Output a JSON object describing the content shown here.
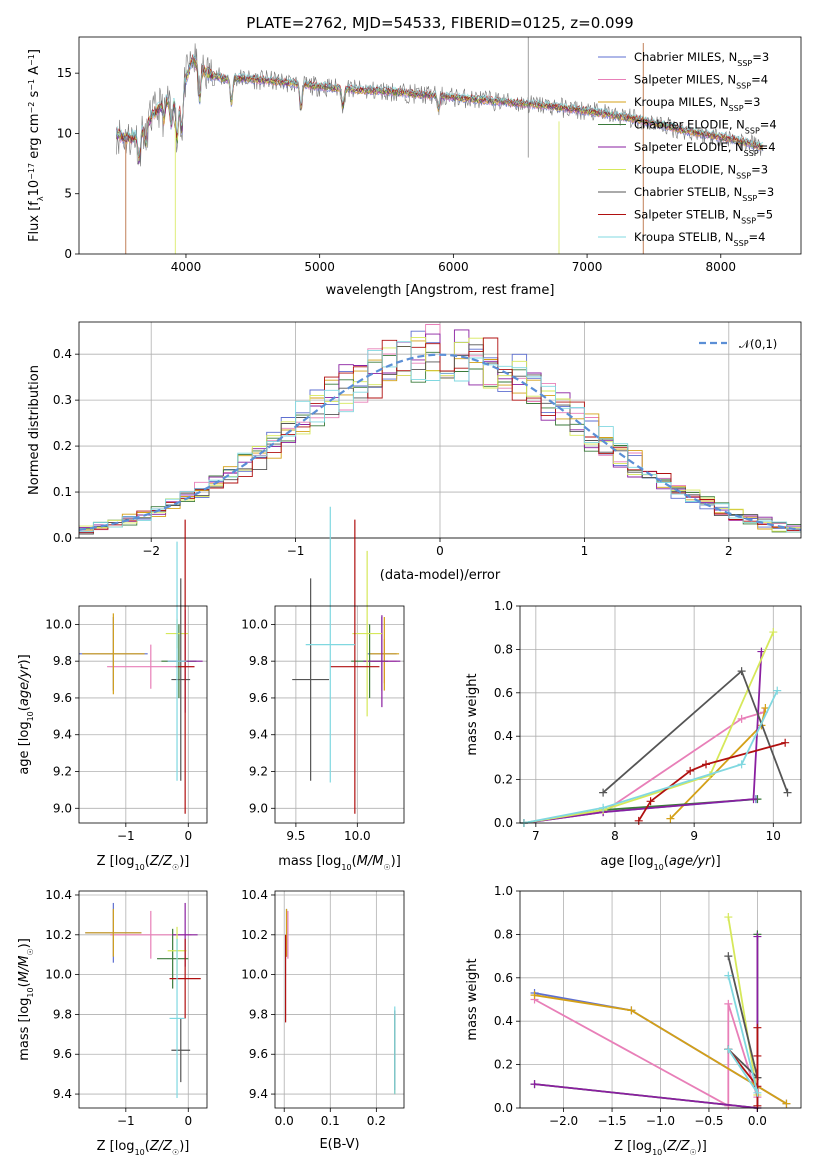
{
  "figure": {
    "title": "PLATE=2762, MJD=54533, FIBERID=0125, z=0.099"
  },
  "colors": {
    "Chabrier MILES": "#5e6fd0",
    "Salpeter MILES": "#e87fb8",
    "Kroupa MILES": "#d4a017",
    "Chabrier ELODIE": "#3a7a3a",
    "Salpeter ELODIE": "#8a1fa0",
    "Kroupa ELODIE": "#d6e85a",
    "Chabrier STELIB": "#555555",
    "Salpeter STELIB": "#b01010",
    "Kroupa STELIB": "#80d8e0",
    "gaussian": "#5b8fd6"
  },
  "chart_data": [
    {
      "type": "line",
      "id": "spectrum",
      "xlabel": "wavelength [Angstrom, rest frame]",
      "ylabel": "Flux [f_λ10^-17 erg cm^-2 s^-1 A^-1]",
      "xlim": [
        3200,
        8600
      ],
      "ylim": [
        0,
        18
      ],
      "xticks": [
        4000,
        5000,
        6000,
        7000,
        8000
      ],
      "yticks": [
        0,
        5,
        10,
        15
      ],
      "grid": false,
      "legend_position": "top-right",
      "legend": [
        {
          "name": "Chabrier MILES",
          "nssp": "3"
        },
        {
          "name": "Salpeter MILES",
          "nssp": "4"
        },
        {
          "name": "Kroupa MILES",
          "nssp": "3"
        },
        {
          "name": "Chabrier ELODIE",
          "nssp": "4"
        },
        {
          "name": "Salpeter ELODIE",
          "nssp": "4"
        },
        {
          "name": "Kroupa ELODIE",
          "nssp": "3"
        },
        {
          "name": "Chabrier STELIB",
          "nssp": "3"
        },
        {
          "name": "Salpeter STELIB",
          "nssp": "5"
        },
        {
          "name": "Kroupa STELIB",
          "nssp": "4"
        }
      ],
      "continuum": {
        "x": [
          3480,
          3550,
          3650,
          3750,
          3850,
          3950,
          4000,
          4050,
          4100,
          4200,
          4300,
          4400,
          4500,
          4700,
          4900,
          5100,
          5300,
          5500,
          5700,
          5900,
          6100,
          6300,
          6500,
          6700,
          6900,
          7100,
          7300,
          7500,
          7700,
          7900,
          8100,
          8300
        ],
        "y": [
          10.0,
          9.6,
          9.8,
          11.5,
          12.8,
          12.4,
          14.6,
          16.1,
          15.4,
          14.8,
          14.5,
          14.6,
          14.5,
          14.3,
          14.0,
          13.8,
          13.6,
          13.5,
          13.3,
          13.1,
          12.9,
          12.7,
          12.5,
          12.3,
          12.0,
          11.7,
          11.3,
          10.9,
          10.3,
          9.9,
          9.5,
          8.9
        ]
      }
    },
    {
      "type": "bar",
      "id": "residual-histogram",
      "xlabel": "(data-model)/error",
      "ylabel": "Normed distribution",
      "xlim": [
        -2.5,
        2.5
      ],
      "ylim": [
        0,
        0.47
      ],
      "xticks": [
        -2,
        -1,
        0,
        1,
        2
      ],
      "yticks": [
        0.0,
        0.1,
        0.2,
        0.3,
        0.4
      ],
      "grid": true,
      "legend_position": "top-right",
      "legend": [
        {
          "name": "𝒩(0,1)"
        }
      ],
      "bin_width": 0.1,
      "curve": "standard normal density"
    },
    {
      "type": "scatter",
      "id": "age-vs-Z",
      "xlabel": "Z [log10(Z/Z☉)]",
      "ylabel": "age  [log10(age/yr)]",
      "xlim": [
        -1.75,
        0.3
      ],
      "ylim": [
        8.92,
        10.1
      ],
      "xticks": [
        -1,
        0
      ],
      "yticks": [
        9.0,
        9.2,
        9.4,
        9.6,
        9.8,
        10.0
      ],
      "grid": true,
      "series": [
        {
          "name": "Chabrier MILES",
          "x": -1.2,
          "y": 9.84,
          "xerr": 0.55,
          "yerr": 0.2
        },
        {
          "name": "Salpeter MILES",
          "x": -0.6,
          "y": 9.77,
          "xerr": 0.7,
          "yerr": 0.12
        },
        {
          "name": "Kroupa MILES",
          "x": -1.2,
          "y": 9.84,
          "xerr": 0.5,
          "yerr": 0.22
        },
        {
          "name": "Chabrier ELODIE",
          "x": -0.15,
          "y": 9.8,
          "xerr": 0.28,
          "yerr": 0.2
        },
        {
          "name": "Salpeter ELODIE",
          "x": -0.05,
          "y": 9.8,
          "xerr": 0.28,
          "yerr": 0.28
        },
        {
          "name": "Kroupa ELODIE",
          "x": -0.18,
          "y": 9.95,
          "xerr": 0.18,
          "yerr": 0.08
        },
        {
          "name": "Chabrier STELIB",
          "x": -0.12,
          "y": 9.7,
          "xerr": 0.15,
          "yerr": 0.55
        },
        {
          "name": "Salpeter STELIB",
          "x": -0.05,
          "y": 9.77,
          "xerr": 0.15,
          "yerr": 0.8
        },
        {
          "name": "Kroupa STELIB",
          "x": -0.18,
          "y": 9.8,
          "xerr": 0.15,
          "yerr": 0.65
        }
      ]
    },
    {
      "type": "scatter",
      "id": "age-vs-mass",
      "xlabel": "mass [log10(M/M☉)]",
      "ylabel": "",
      "xlim": [
        9.33,
        10.38
      ],
      "ylim": [
        8.92,
        10.1
      ],
      "xticks": [
        9.5,
        10.0
      ],
      "yticks": [
        9.0,
        9.2,
        9.4,
        9.6,
        9.8,
        10.0
      ],
      "grid": true,
      "series": [
        {
          "name": "Chabrier MILES",
          "x": 10.2,
          "y": 9.84,
          "xerr": 0.12,
          "yerr": 0.2
        },
        {
          "name": "Salpeter MILES",
          "x": 10.22,
          "y": 9.8,
          "xerr": 0.1,
          "yerr": 0.12
        },
        {
          "name": "Kroupa MILES",
          "x": 10.22,
          "y": 9.84,
          "xerr": 0.12,
          "yerr": 0.2
        },
        {
          "name": "Chabrier ELODIE",
          "x": 10.1,
          "y": 9.8,
          "xerr": 0.15,
          "yerr": 0.2
        },
        {
          "name": "Salpeter ELODIE",
          "x": 10.2,
          "y": 9.8,
          "xerr": 0.15,
          "yerr": 0.25
        },
        {
          "name": "Kroupa ELODIE",
          "x": 10.08,
          "y": 9.95,
          "xerr": 0.12,
          "yerr": 0.45
        },
        {
          "name": "Chabrier STELIB",
          "x": 9.62,
          "y": 9.7,
          "xerr": 0.15,
          "yerr": 0.55
        },
        {
          "name": "Salpeter STELIB",
          "x": 9.98,
          "y": 9.77,
          "xerr": 0.2,
          "yerr": 0.8
        },
        {
          "name": "Kroupa STELIB",
          "x": 9.78,
          "y": 9.89,
          "xerr": 0.2,
          "yerr": 0.75
        }
      ]
    },
    {
      "type": "line",
      "id": "mass-weight-vs-age",
      "xlabel": "age  [log10(age/yr)]",
      "ylabel": "mass weight",
      "xlim": [
        6.8,
        10.35
      ],
      "ylim": [
        0,
        1.0
      ],
      "xticks": [
        7,
        8,
        9,
        10
      ],
      "yticks": [
        0.0,
        0.2,
        0.4,
        0.6,
        0.8,
        1.0
      ],
      "grid": true,
      "series": [
        {
          "name": "Chabrier MILES",
          "x": [
            6.85,
            7.85,
            9.78
          ],
          "y": [
            0.0,
            0.05,
            0.11
          ]
        },
        {
          "name": "Salpeter MILES",
          "x": [
            6.85,
            7.85,
            9.6,
            9.88
          ],
          "y": [
            0.0,
            0.05,
            0.48,
            0.51
          ]
        },
        {
          "name": "Kroupa MILES",
          "x": [
            8.7,
            9.85,
            9.9
          ],
          "y": [
            0.02,
            0.45,
            0.53
          ]
        },
        {
          "name": "Chabrier ELODIE",
          "x": [
            6.85,
            7.85,
            9.8
          ],
          "y": [
            0.0,
            0.06,
            0.11
          ]
        },
        {
          "name": "Salpeter ELODIE",
          "x": [
            6.85,
            7.85,
            9.75,
            9.85
          ],
          "y": [
            0.0,
            0.05,
            0.11,
            0.79
          ]
        },
        {
          "name": "Kroupa ELODIE",
          "x": [
            6.85,
            7.85,
            9.2,
            10.0
          ],
          "y": [
            0.0,
            0.06,
            0.22,
            0.88
          ]
        },
        {
          "name": "Chabrier STELIB",
          "x": [
            7.85,
            9.6,
            10.18
          ],
          "y": [
            0.14,
            0.7,
            0.14
          ]
        },
        {
          "name": "Salpeter STELIB",
          "x": [
            8.3,
            8.45,
            8.95,
            9.15,
            10.15
          ],
          "y": [
            0.01,
            0.1,
            0.24,
            0.27,
            0.37
          ]
        },
        {
          "name": "Kroupa STELIB",
          "x": [
            6.85,
            7.85,
            9.6,
            10.05
          ],
          "y": [
            0.0,
            0.07,
            0.27,
            0.61
          ]
        }
      ]
    },
    {
      "type": "scatter",
      "id": "mass-vs-Z",
      "xlabel": "Z [log10(Z/Z☉)]",
      "ylabel": "mass [log10(M/M☉)]",
      "xlim": [
        -1.75,
        0.3
      ],
      "ylim": [
        9.33,
        10.42
      ],
      "xticks": [
        -1,
        0
      ],
      "yticks": [
        9.4,
        9.6,
        9.8,
        10.0,
        10.2,
        10.4
      ],
      "grid": true,
      "series": [
        {
          "name": "Chabrier MILES",
          "x": -1.2,
          "y": 10.21,
          "xerr": 0.45,
          "yerr": 0.15
        },
        {
          "name": "Salpeter MILES",
          "x": -0.6,
          "y": 10.2,
          "xerr": 0.65,
          "yerr": 0.12
        },
        {
          "name": "Kroupa MILES",
          "x": -1.2,
          "y": 10.21,
          "xerr": 0.45,
          "yerr": 0.12
        },
        {
          "name": "Chabrier ELODIE",
          "x": -0.25,
          "y": 10.08,
          "xerr": 0.25,
          "yerr": 0.15
        },
        {
          "name": "Salpeter ELODIE",
          "x": -0.05,
          "y": 10.2,
          "xerr": 0.2,
          "yerr": 0.16
        },
        {
          "name": "Kroupa ELODIE",
          "x": -0.18,
          "y": 10.12,
          "xerr": 0.15,
          "yerr": 0.12
        },
        {
          "name": "Chabrier STELIB",
          "x": -0.12,
          "y": 9.62,
          "xerr": 0.15,
          "yerr": 0.16
        },
        {
          "name": "Salpeter STELIB",
          "x": -0.05,
          "y": 9.98,
          "xerr": 0.25,
          "yerr": 0.2
        },
        {
          "name": "Kroupa STELIB",
          "x": -0.18,
          "y": 9.78,
          "xerr": 0.12,
          "yerr": 0.4
        }
      ]
    },
    {
      "type": "scatter",
      "id": "mass-vs-ebv",
      "xlabel": "E(B-V)",
      "ylabel": "",
      "xlim": [
        -0.02,
        0.26
      ],
      "ylim": [
        9.33,
        10.42
      ],
      "xticks": [
        0.0,
        0.1,
        0.2
      ],
      "yticks": [
        9.4,
        9.6,
        9.8,
        10.0,
        10.2,
        10.4
      ],
      "grid": true,
      "series": [
        {
          "name": "Chabrier MILES",
          "x": 0.005,
          "y": 10.21,
          "xerr": 0.0,
          "yerr": 0.12
        },
        {
          "name": "Salpeter MILES",
          "x": 0.008,
          "y": 10.2,
          "xerr": 0.0,
          "yerr": 0.12
        },
        {
          "name": "Kroupa MILES",
          "x": 0.005,
          "y": 10.21,
          "xerr": 0.0,
          "yerr": 0.12
        },
        {
          "name": "Chabrier ELODIE",
          "x": 0.24,
          "y": 9.6,
          "xerr": 0.0,
          "yerr": 0.2
        },
        {
          "name": "Salpeter ELODIE",
          "x": 0.24,
          "y": 9.6,
          "xerr": 0.0,
          "yerr": 0.2
        },
        {
          "name": "Kroupa ELODIE",
          "x": 0.24,
          "y": 9.6,
          "xerr": 0.0,
          "yerr": 0.2
        },
        {
          "name": "Chabrier STELIB",
          "x": 0.24,
          "y": 9.62,
          "xerr": 0.0,
          "yerr": 0.2
        },
        {
          "name": "Salpeter STELIB",
          "x": 0.003,
          "y": 9.98,
          "xerr": 0.0,
          "yerr": 0.22
        },
        {
          "name": "Kroupa STELIB",
          "x": 0.24,
          "y": 9.62,
          "xerr": 0.0,
          "yerr": 0.22
        }
      ]
    },
    {
      "type": "line",
      "id": "mass-weight-vs-Z",
      "xlabel": "Z [log10(Z/Z☉)]",
      "ylabel": "mass weight",
      "xlim": [
        -2.45,
        0.45
      ],
      "ylim": [
        0,
        1.0
      ],
      "xticks": [
        -2.0,
        -1.5,
        -1.0,
        -0.5,
        0.0
      ],
      "yticks": [
        0.0,
        0.2,
        0.4,
        0.6,
        0.8,
        1.0
      ],
      "grid": true,
      "series": [
        {
          "name": "Chabrier MILES",
          "x": [
            -2.3,
            -1.3,
            0.3
          ],
          "y": [
            0.53,
            0.45,
            0.02
          ]
        },
        {
          "name": "Salpeter MILES",
          "x": [
            -2.3,
            -0.3,
            -0.3,
            0.0
          ],
          "y": [
            0.5,
            0.01,
            0.48,
            0.05
          ]
        },
        {
          "name": "Kroupa MILES",
          "x": [
            -2.3,
            -1.3,
            0.3
          ],
          "y": [
            0.52,
            0.45,
            0.02
          ]
        },
        {
          "name": "Chabrier ELODIE",
          "x": [
            -2.3,
            0.0,
            0.0
          ],
          "y": [
            0.11,
            0.0,
            0.8
          ]
        },
        {
          "name": "Salpeter ELODIE",
          "x": [
            -2.3,
            0.0,
            0.0
          ],
          "y": [
            0.11,
            0.0,
            0.79
          ]
        },
        {
          "name": "Kroupa ELODIE",
          "x": [
            -0.3,
            0.0
          ],
          "y": [
            0.88,
            0.06
          ]
        },
        {
          "name": "Chabrier STELIB",
          "x": [
            -0.3,
            0.0,
            -0.3,
            0.0
          ],
          "y": [
            0.7,
            0.14,
            0.27,
            0.14
          ]
        },
        {
          "name": "Salpeter STELIB",
          "x": [
            -0.3,
            0.0,
            0.0,
            0.0,
            0.0
          ],
          "y": [
            0.27,
            0.1,
            0.24,
            0.37,
            0.01
          ]
        },
        {
          "name": "Kroupa STELIB",
          "x": [
            -0.3,
            0.0,
            -0.3
          ],
          "y": [
            0.61,
            0.07,
            0.27
          ]
        }
      ]
    }
  ]
}
